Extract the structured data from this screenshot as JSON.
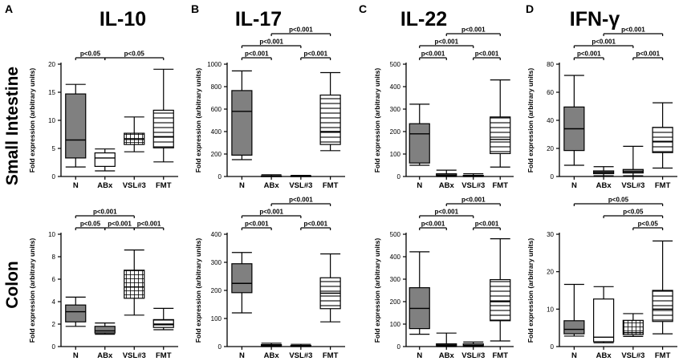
{
  "figure": {
    "row_labels": [
      "Small Intestine",
      "Colon"
    ],
    "colors": {
      "fill_dark": "#808080",
      "fill_light": "#ffffff",
      "stroke": "#000000"
    }
  },
  "chart_data": [
    {
      "panel_letter": "A",
      "title": "IL-10",
      "row": "Small Intestine",
      "type": "boxplot",
      "ylabel": "Fold expression (arbitrary units)",
      "ylim": [
        0,
        20
      ],
      "yticks": [
        0,
        5,
        10,
        15,
        20
      ],
      "categories": [
        "N",
        "ABx",
        "VSL#3",
        "FMT"
      ],
      "boxes": [
        {
          "min": 1.7,
          "q1": 3.3,
          "median": 6.5,
          "q3": 14.7,
          "max": 16.4,
          "pattern": "dark"
        },
        {
          "min": 1.0,
          "q1": 1.8,
          "median": 3.3,
          "q3": 4.2,
          "max": 4.9,
          "pattern": "none"
        },
        {
          "min": 4.4,
          "q1": 5.7,
          "median": 6.6,
          "q3": 7.7,
          "max": 10.6,
          "pattern": "grid"
        },
        {
          "min": 2.6,
          "q1": 5.1,
          "median": 7.1,
          "q3": 11.8,
          "max": 19.1,
          "pattern": "hlines"
        }
      ],
      "annotations": [
        {
          "from": 0,
          "to": 1,
          "label": "p<0.05",
          "level": 0
        },
        {
          "from": 1,
          "to": 3,
          "label": "p<0.05",
          "level": 0
        }
      ]
    },
    {
      "panel_letter": "B",
      "title": "IL-17",
      "row": "Small Intestine",
      "type": "boxplot",
      "ylabel": "Fold expression (arbitrary units)",
      "ylim": [
        0,
        1000
      ],
      "yticks": [
        0,
        200,
        400,
        600,
        800,
        1000
      ],
      "categories": [
        "N",
        "ABx",
        "VSL#3",
        "FMT"
      ],
      "boxes": [
        {
          "min": 150,
          "q1": 190,
          "median": 580,
          "q3": 765,
          "max": 940,
          "pattern": "dark"
        },
        {
          "min": 0,
          "q1": 0,
          "median": 2,
          "q3": 5,
          "max": 15,
          "pattern": "none"
        },
        {
          "min": 0,
          "q1": 0,
          "median": 2,
          "q3": 5,
          "max": 10,
          "pattern": "none"
        },
        {
          "min": 230,
          "q1": 285,
          "median": 400,
          "q3": 725,
          "max": 925,
          "pattern": "hlines"
        }
      ],
      "annotations": [
        {
          "from": 0,
          "to": 1,
          "label": "p<0.001",
          "level": 0
        },
        {
          "from": 2,
          "to": 3,
          "label": "p<0.001",
          "level": 0
        },
        {
          "from": 0,
          "to": 2,
          "label": "p<0.001",
          "level": 1
        },
        {
          "from": 1,
          "to": 3,
          "label": "p<0.001",
          "level": 2
        }
      ]
    },
    {
      "panel_letter": "C",
      "title": "IL-22",
      "row": "Small Intestine",
      "type": "boxplot",
      "ylabel": "Fold expression (arbitrary units)",
      "ylim": [
        0,
        500
      ],
      "yticks": [
        0,
        100,
        200,
        300,
        400,
        500
      ],
      "categories": [
        "N",
        "ABx",
        "VSL#3",
        "FMT"
      ],
      "boxes": [
        {
          "min": 50,
          "q1": 60,
          "median": 190,
          "q3": 235,
          "max": 322,
          "pattern": "dark"
        },
        {
          "min": 0,
          "q1": 3,
          "median": 7,
          "q3": 12,
          "max": 28,
          "pattern": "none"
        },
        {
          "min": 0,
          "q1": 0,
          "median": 2,
          "q3": 5,
          "max": 12,
          "pattern": "none"
        },
        {
          "min": 42,
          "q1": 102,
          "median": 165,
          "q3": 265,
          "max": 430,
          "pattern": "hlines"
        }
      ],
      "annotations": [
        {
          "from": 0,
          "to": 1,
          "label": "p<0.001",
          "level": 0
        },
        {
          "from": 2,
          "to": 3,
          "label": "p<0.001",
          "level": 0
        },
        {
          "from": 0,
          "to": 2,
          "label": "p<0.001",
          "level": 1
        },
        {
          "from": 1,
          "to": 3,
          "label": "p<0.001",
          "level": 2
        }
      ]
    },
    {
      "panel_letter": "D",
      "title": "IFN-γ",
      "row": "Small Intestine",
      "type": "boxplot",
      "ylabel": "Fold expression (arbitrary units)",
      "ylim": [
        0,
        80
      ],
      "yticks": [
        0,
        20,
        40,
        60,
        80
      ],
      "categories": [
        "N",
        "ABx",
        "VSL#3",
        "FMT"
      ],
      "boxes": [
        {
          "min": 8,
          "q1": 18.5,
          "median": 34,
          "q3": 49.5,
          "max": 72,
          "pattern": "dark"
        },
        {
          "min": 0.5,
          "q1": 2,
          "median": 3,
          "q3": 4,
          "max": 7,
          "pattern": "dark"
        },
        {
          "min": 0.5,
          "q1": 2.5,
          "median": 3.5,
          "q3": 5,
          "max": 21.5,
          "pattern": "dark"
        },
        {
          "min": 6,
          "q1": 17,
          "median": 25,
          "q3": 35,
          "max": 52.5,
          "pattern": "hlines"
        }
      ],
      "annotations": [
        {
          "from": 0,
          "to": 1,
          "label": "p<0.001",
          "level": 0
        },
        {
          "from": 2,
          "to": 3,
          "label": "p<0.001",
          "level": 0
        },
        {
          "from": 0,
          "to": 2,
          "label": "p<0.001",
          "level": 1
        },
        {
          "from": 1,
          "to": 3,
          "label": "p<0.001",
          "level": 2
        }
      ]
    },
    {
      "panel_letter": "",
      "title": "",
      "row": "Colon",
      "type": "boxplot",
      "ylabel": "Fold expression (arbitrary units)",
      "ylim": [
        0,
        10
      ],
      "yticks": [
        0,
        2,
        4,
        6,
        8,
        10
      ],
      "categories": [
        "N",
        "ABx",
        "VSL#3",
        "FMT"
      ],
      "boxes": [
        {
          "min": 1.8,
          "q1": 2.2,
          "median": 3.1,
          "q3": 3.7,
          "max": 4.4,
          "pattern": "dark"
        },
        {
          "min": 1.1,
          "q1": 1.2,
          "median": 1.4,
          "q3": 1.8,
          "max": 2.1,
          "pattern": "dark"
        },
        {
          "min": 2.8,
          "q1": 4.3,
          "median": 5.3,
          "q3": 6.8,
          "max": 8.6,
          "pattern": "grid"
        },
        {
          "min": 1.5,
          "q1": 1.7,
          "median": 2.0,
          "q3": 2.4,
          "max": 3.4,
          "pattern": "hlines"
        }
      ],
      "annotations": [
        {
          "from": 0,
          "to": 1,
          "label": "p<0.05",
          "level": 0
        },
        {
          "from": 1,
          "to": 2,
          "label": "p<0.001",
          "level": 0
        },
        {
          "from": 2,
          "to": 3,
          "label": "p<0.001",
          "level": 0
        },
        {
          "from": 0,
          "to": 2,
          "label": "p<0.001",
          "level": 1
        }
      ]
    },
    {
      "panel_letter": "",
      "title": "",
      "row": "Colon",
      "type": "boxplot",
      "ylabel": "Fold expression (arbitrary units)",
      "ylim": [
        0,
        400
      ],
      "yticks": [
        0,
        100,
        200,
        300,
        400
      ],
      "categories": [
        "N",
        "ABx",
        "VSL#3",
        "FMT"
      ],
      "boxes": [
        {
          "min": 120,
          "q1": 192,
          "median": 225,
          "q3": 295,
          "max": 335,
          "pattern": "dark"
        },
        {
          "min": 0,
          "q1": 2,
          "median": 4,
          "q3": 7,
          "max": 12,
          "pattern": "dark"
        },
        {
          "min": 0,
          "q1": 1,
          "median": 2,
          "q3": 4,
          "max": 8,
          "pattern": "dark"
        },
        {
          "min": 88,
          "q1": 135,
          "median": 190,
          "q3": 245,
          "max": 330,
          "pattern": "hlines"
        }
      ],
      "annotations": [
        {
          "from": 0,
          "to": 1,
          "label": "p<0.001",
          "level": 0
        },
        {
          "from": 2,
          "to": 3,
          "label": "p<0.001",
          "level": 0
        },
        {
          "from": 0,
          "to": 2,
          "label": "p<0.001",
          "level": 1
        },
        {
          "from": 1,
          "to": 3,
          "label": "p<0.001",
          "level": 2
        }
      ]
    },
    {
      "panel_letter": "",
      "title": "",
      "row": "Colon",
      "type": "boxplot",
      "ylabel": "Fold expression (arbitrary units)",
      "ylim": [
        0,
        500
      ],
      "yticks": [
        0,
        100,
        200,
        300,
        400,
        500
      ],
      "categories": [
        "N",
        "ABx",
        "VSL#3",
        "FMT"
      ],
      "boxes": [
        {
          "min": 55,
          "q1": 80,
          "median": 170,
          "q3": 262,
          "max": 422,
          "pattern": "dark"
        },
        {
          "min": 0,
          "q1": 3,
          "median": 7,
          "q3": 12,
          "max": 60,
          "pattern": "dark"
        },
        {
          "min": 0,
          "q1": 2,
          "median": 5,
          "q3": 12,
          "max": 20,
          "pattern": "dark"
        },
        {
          "min": 25,
          "q1": 115,
          "median": 200,
          "q3": 298,
          "max": 480,
          "pattern": "hlines"
        }
      ],
      "annotations": [
        {
          "from": 0,
          "to": 1,
          "label": "p<0.001",
          "level": 0
        },
        {
          "from": 2,
          "to": 3,
          "label": "p<0.001",
          "level": 0
        },
        {
          "from": 0,
          "to": 2,
          "label": "p<0.001",
          "level": 1
        },
        {
          "from": 1,
          "to": 3,
          "label": "p<0.001",
          "level": 2
        }
      ]
    },
    {
      "panel_letter": "",
      "title": "",
      "row": "Colon",
      "type": "boxplot",
      "ylabel": "Fold expression (arbitrary units)",
      "ylim": [
        0,
        30
      ],
      "yticks": [
        0,
        10,
        20,
        30
      ],
      "categories": [
        "N",
        "ABx",
        "VSL#3",
        "FMT"
      ],
      "boxes": [
        {
          "min": 2.8,
          "q1": 3.4,
          "median": 4.6,
          "q3": 6.9,
          "max": 16.6,
          "pattern": "dark"
        },
        {
          "min": 1.0,
          "q1": 1.3,
          "median": 2.5,
          "q3": 12.7,
          "max": 16.0,
          "pattern": "none"
        },
        {
          "min": 2.7,
          "q1": 3.2,
          "median": 3.7,
          "q3": 7.0,
          "max": 8.8,
          "pattern": "grid"
        },
        {
          "min": 3.4,
          "q1": 6.7,
          "median": 10.0,
          "q3": 15.0,
          "max": 28.2,
          "pattern": "hlines"
        }
      ],
      "annotations": [
        {
          "from": 2,
          "to": 3,
          "label": "p<0.05",
          "level": 0
        },
        {
          "from": 1,
          "to": 3,
          "label": "p<0.05",
          "level": 1
        },
        {
          "from": 0,
          "to": 3,
          "label": "p<0.05",
          "level": 2
        }
      ]
    }
  ]
}
